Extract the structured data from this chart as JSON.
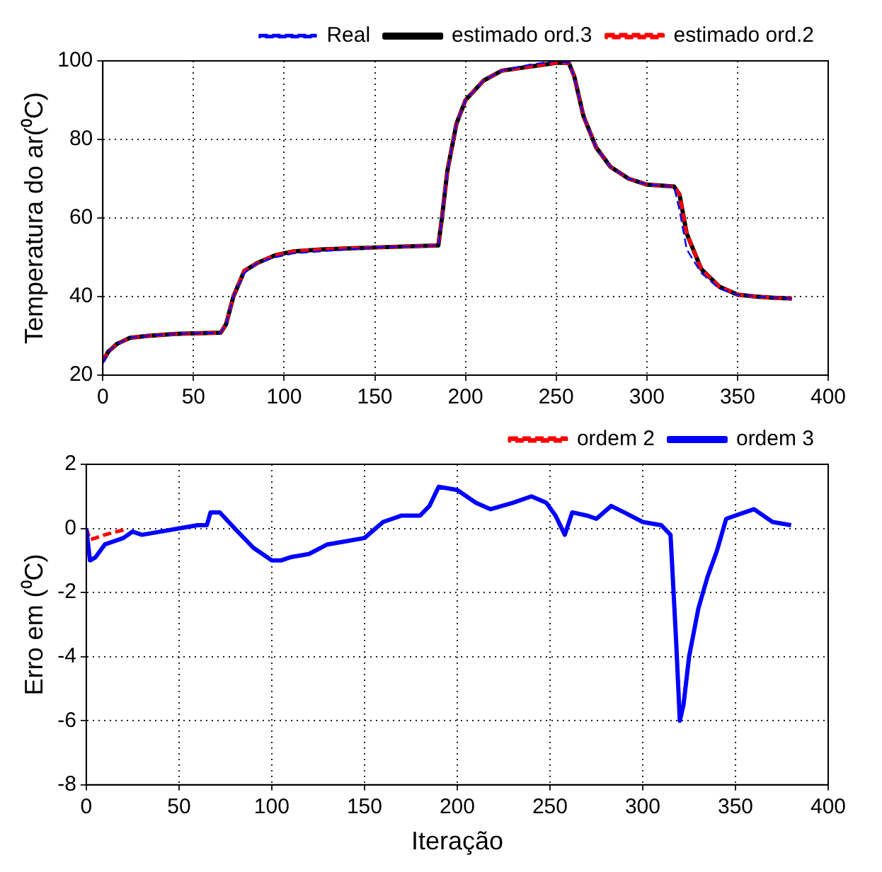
{
  "chart_data": [
    {
      "type": "line",
      "ylabel": "Temperatura do ar(⁰C)",
      "xlim": [
        0,
        400
      ],
      "xticks": [
        0,
        50,
        100,
        150,
        200,
        250,
        300,
        350,
        400
      ],
      "ylim": [
        20,
        100
      ],
      "yticks": [
        20,
        40,
        60,
        80,
        100
      ],
      "grid": true,
      "legend": "top right",
      "marker": "none",
      "x": [
        0,
        3,
        8,
        15,
        25,
        40,
        65,
        68,
        72,
        78,
        85,
        95,
        105,
        120,
        150,
        185,
        187,
        190,
        195,
        200,
        210,
        220,
        235,
        250,
        257,
        260,
        265,
        272,
        280,
        290,
        300,
        315,
        318,
        322,
        330,
        340,
        350,
        360,
        370,
        380
      ],
      "series": [
        {
          "name": "Real",
          "color": "#0000ff",
          "line_style": "dashed",
          "values": [
            23,
            26,
            28,
            29.5,
            30,
            30.5,
            30.8,
            33,
            40,
            46,
            48.5,
            50,
            51,
            51.5,
            52.5,
            53,
            60,
            72,
            84,
            90,
            95,
            97.5,
            99,
            100,
            99.5,
            96,
            86,
            78,
            73,
            70,
            68.5,
            68,
            62,
            52,
            46,
            42,
            40.5,
            40,
            39.7,
            39.5
          ]
        },
        {
          "name": "estimado ord.3",
          "color": "#000000",
          "line_style": "solid",
          "values": [
            23.5,
            26,
            28,
            29.5,
            30,
            30.5,
            30.8,
            33,
            40,
            46.5,
            48.5,
            50.5,
            51.5,
            52,
            52.5,
            53,
            60,
            72,
            84,
            90,
            95,
            97.5,
            98.5,
            99.5,
            99.5,
            96,
            86,
            78,
            73,
            70,
            68.5,
            68,
            66,
            56,
            47,
            42.5,
            40.5,
            40,
            39.7,
            39.5
          ]
        },
        {
          "name": "estimado ord.2",
          "color": "#ff0000",
          "line_style": "dashed",
          "values": [
            23.5,
            26,
            28,
            29.5,
            30,
            30.5,
            30.8,
            33,
            40,
            46.5,
            48.5,
            50.5,
            51.5,
            52,
            52.5,
            53,
            60,
            72,
            84,
            90,
            95,
            97.5,
            98.5,
            99.5,
            99.5,
            96,
            86,
            78,
            73,
            70,
            68.5,
            68,
            66,
            56,
            47,
            42.5,
            40.5,
            40,
            39.7,
            39.5
          ]
        }
      ]
    },
    {
      "type": "line",
      "xlabel": "Iteração",
      "ylabel": "Erro em (⁰C)",
      "xlim": [
        0,
        400
      ],
      "xticks": [
        0,
        50,
        100,
        150,
        200,
        250,
        300,
        350,
        400
      ],
      "ylim": [
        -8,
        2
      ],
      "yticks": [
        -8,
        -6,
        -4,
        -2,
        0,
        2
      ],
      "grid": true,
      "legend": "top right",
      "marker": "none",
      "x": [
        0,
        1,
        2,
        5,
        10,
        20,
        25,
        30,
        40,
        50,
        60,
        65,
        67,
        72,
        80,
        90,
        100,
        105,
        110,
        120,
        130,
        140,
        150,
        160,
        170,
        180,
        185,
        190,
        200,
        210,
        218,
        230,
        240,
        248,
        253,
        258,
        262,
        270,
        275,
        283,
        290,
        300,
        310,
        315,
        318,
        320,
        322,
        325,
        330,
        335,
        340,
        345,
        355,
        360,
        370,
        380
      ],
      "series": [
        {
          "name": "ordem 2",
          "color": "#ff0000",
          "line_style": "dashed",
          "x": [
            0,
            2,
            5,
            10,
            15,
            22
          ],
          "values": [
            0,
            -0.35,
            -0.3,
            -0.2,
            -0.12,
            -0.02
          ]
        },
        {
          "name": "ordem 3",
          "color": "#0000ff",
          "line_style": "solid",
          "values": [
            0,
            -0.5,
            -1,
            -0.9,
            -0.5,
            -0.3,
            -0.1,
            -0.2,
            -0.1,
            0,
            0.1,
            0.1,
            0.5,
            0.5,
            0,
            -0.6,
            -1,
            -1,
            -0.9,
            -0.8,
            -0.5,
            -0.4,
            -0.3,
            0.2,
            0.4,
            0.4,
            0.7,
            1.3,
            1.2,
            0.8,
            0.6,
            0.8,
            1.0,
            0.8,
            0.4,
            -0.2,
            0.5,
            0.4,
            0.3,
            0.7,
            0.5,
            0.2,
            0.1,
            -0.2,
            -3.5,
            -6,
            -5.5,
            -4,
            -2.5,
            -1.5,
            -0.7,
            0.3,
            0.5,
            0.6,
            0.2,
            0.1
          ]
        }
      ]
    }
  ]
}
